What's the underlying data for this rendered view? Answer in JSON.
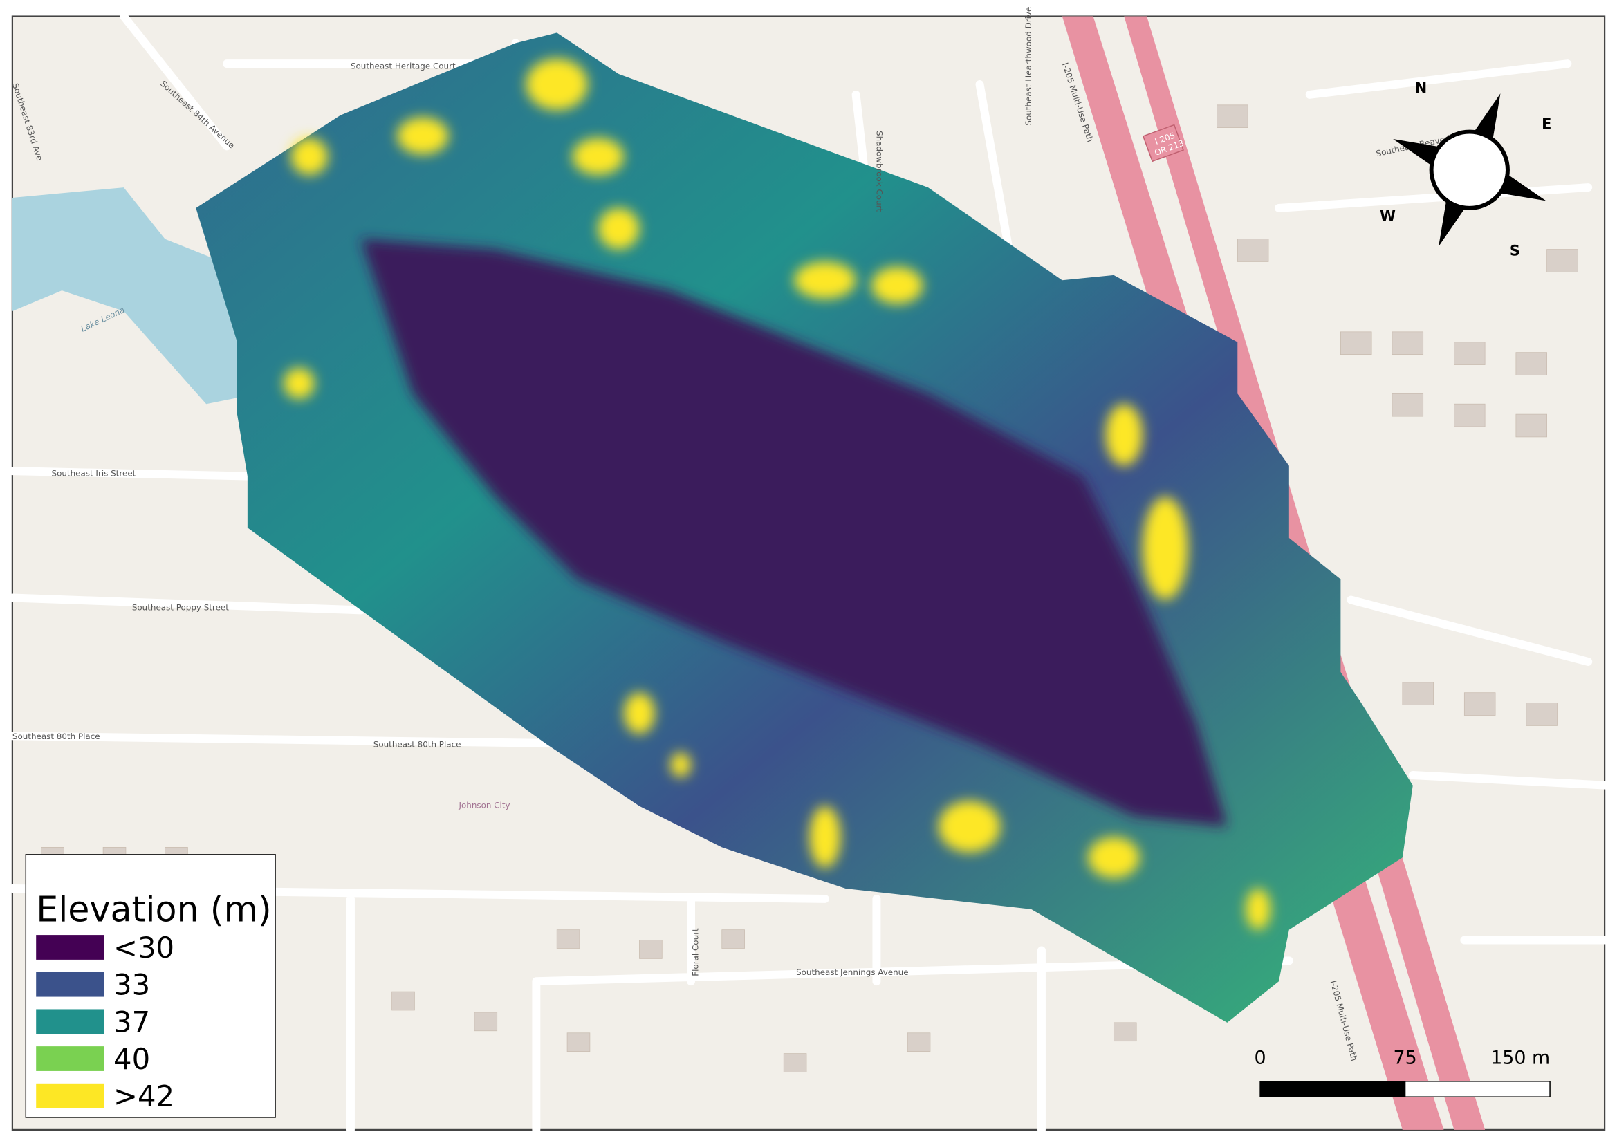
{
  "map": {
    "labels": [
      "Southeast Heritage Court",
      "Southeast 84th Avenue",
      "Southeast 83rd Ave",
      "Lake Leona",
      "Southeast Iris Street",
      "Southeast Poppy Street",
      "Southeast 80th Place",
      "Southeast 80th Place",
      "Johnson City",
      "Southeast Jennings Avenue",
      "Floral Court",
      "Shadowbrook Court",
      "Southeast Hearthwood Drive",
      "I-205 Multi-Use Path",
      "I-205 Multi-Use Path",
      "I 205",
      "OR 213",
      "Southeast Beaverlake Drive"
    ],
    "legend": {
      "title": "Elevation (m)",
      "items": [
        {
          "label": "<30",
          "color": "#440154"
        },
        {
          "label": "33",
          "color": "#3b528b"
        },
        {
          "label": "37",
          "color": "#21918c"
        },
        {
          "label": "40",
          "color": "#7ad151"
        },
        {
          "label": ">42",
          "color": "#fde725"
        }
      ]
    },
    "compass": {
      "n": "N",
      "e": "E",
      "s": "S",
      "w": "W"
    },
    "scale_bar": {
      "ticks": [
        0,
        75,
        {
          "value": 150,
          "label": "150 m"
        }
      ]
    }
  }
}
